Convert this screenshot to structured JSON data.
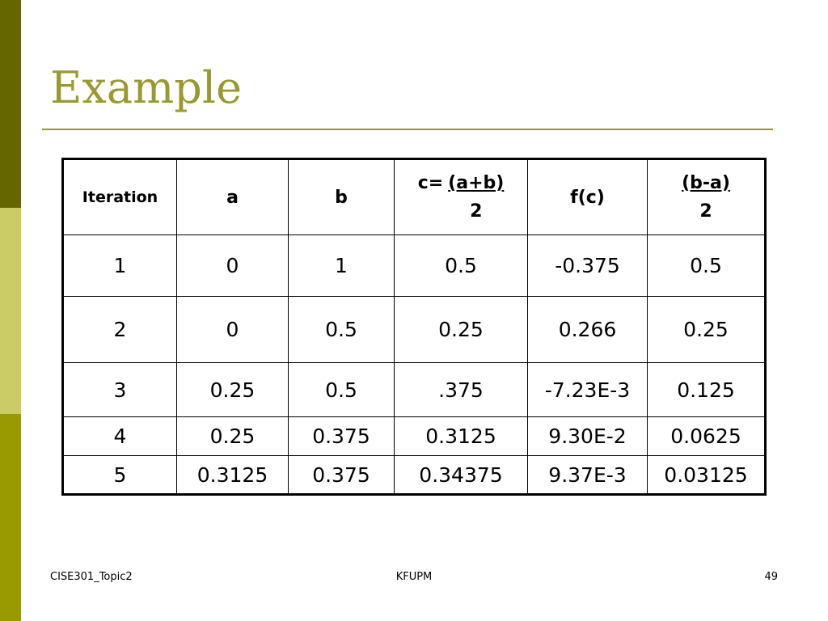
{
  "slide": {
    "title": "Example",
    "footer_left": "CISE301_Topic2",
    "footer_center": "KFUPM",
    "page_number": "49"
  },
  "colors": {
    "bar_top": "#666600",
    "bar_middle": "#cccc66",
    "bar_bottom": "#999900",
    "title": "#999933",
    "rule": "#999933"
  },
  "table": {
    "headers": {
      "iteration": "Iteration",
      "a": "a",
      "b": "b",
      "c_prefix": "c=",
      "c_numerator": "(a+b)",
      "c_denominator": "2",
      "fc": "f(c)",
      "err_numerator": "(b-a)",
      "err_denominator": "2"
    },
    "rows": [
      [
        "1",
        "0",
        "1",
        "0.5",
        "-0.375",
        "0.5"
      ],
      [
        "2",
        "0",
        "0.5",
        "0.25",
        "0.266",
        "0.25"
      ],
      [
        "3",
        "0.25",
        "0.5",
        ".375",
        "-7.23E-3",
        "0.125"
      ],
      [
        "4",
        "0.25",
        "0.375",
        "0.3125",
        "9.30E-2",
        "0.0625"
      ],
      [
        "5",
        "0.3125",
        "0.375",
        "0.34375",
        "9.37E-3",
        "0.03125"
      ]
    ]
  }
}
